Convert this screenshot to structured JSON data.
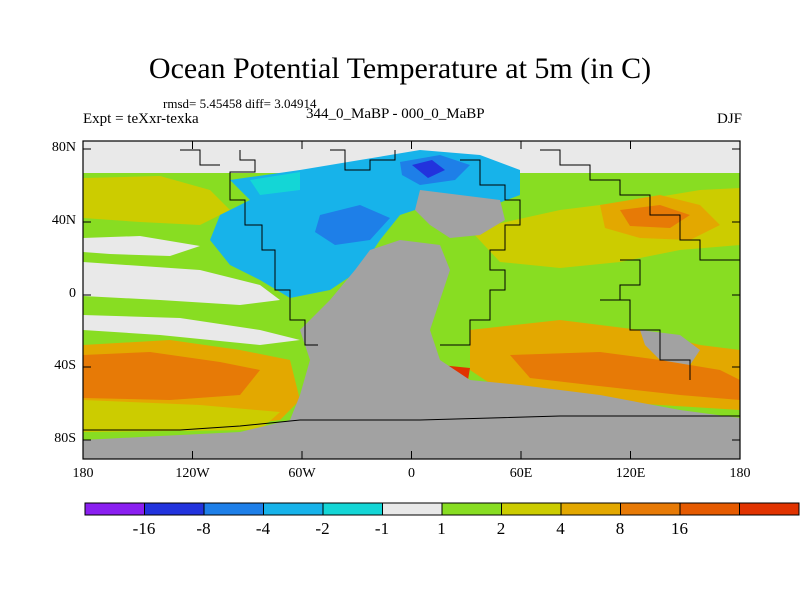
{
  "title": "Ocean Potential Temperature at 5m (in C)",
  "stats": "rmsd= 5.45458  diff= 3.04914",
  "experiment": "Expt = teXxr-texka",
  "period": "344_0_MaBP - 000_0_MaBP",
  "season": "DJF",
  "y_ticks": [
    "80N",
    "40N",
    "0",
    "40S",
    "80S"
  ],
  "x_ticks": [
    "180",
    "120W",
    "60W",
    "0",
    "60E",
    "120E",
    "180"
  ],
  "colorbar": {
    "colors": [
      "#8a1ff0",
      "#2233dd",
      "#1e7fe8",
      "#17b3ea",
      "#14d6d6",
      "#e9e9e9",
      "#88dd22",
      "#cccc00",
      "#e3a800",
      "#e77a06",
      "#e55a00",
      "#e13300"
    ],
    "labels": [
      "-16",
      "-8",
      "-4",
      "-2",
      "-1",
      "1",
      "2",
      "4",
      "8",
      "16"
    ]
  },
  "colors": {
    "land": "#a2a2a2",
    "coast": "#000000"
  }
}
